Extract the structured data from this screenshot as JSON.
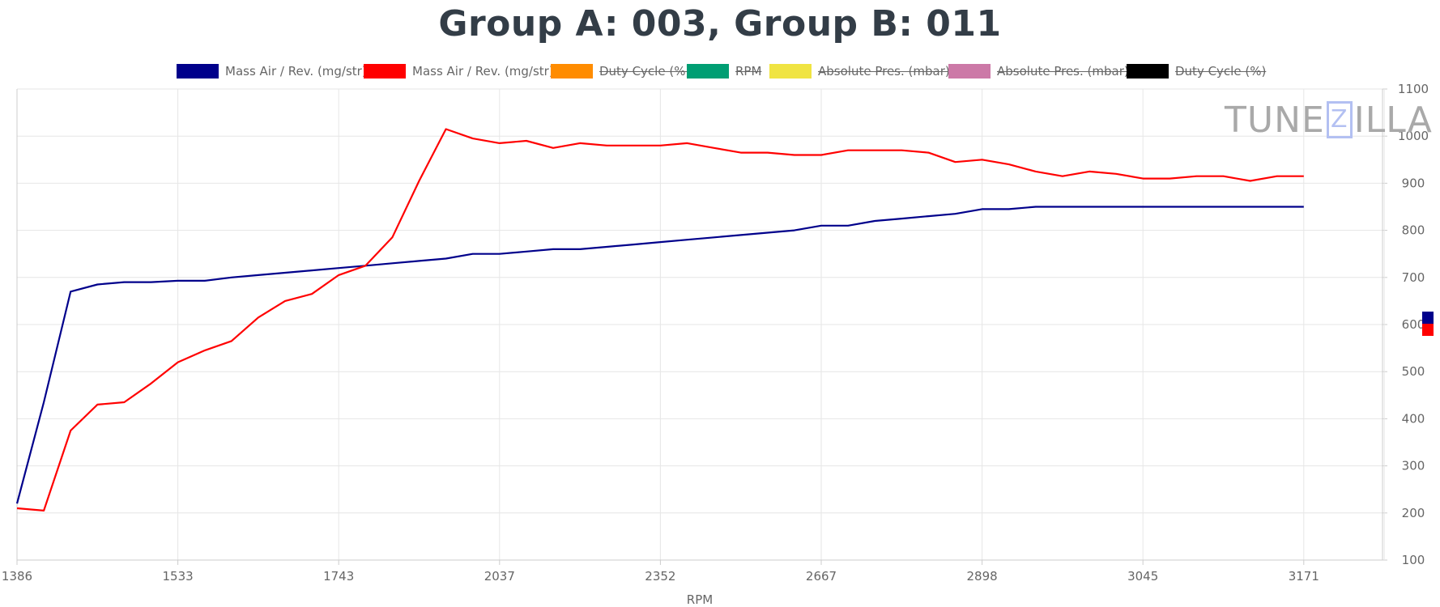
{
  "chart_data": {
    "type": "line",
    "title": "Group A: 003, Group B: 011",
    "xlabel": "RPM",
    "ylabel": "",
    "x_tick_labels": [
      "1386",
      "1533",
      "1743",
      "2037",
      "2352",
      "2667",
      "2898",
      "3045",
      "3171"
    ],
    "x_tick_index": [
      0,
      6,
      12,
      18,
      24,
      30,
      36,
      42,
      48
    ],
    "ylim": [
      100,
      1100
    ],
    "y_ticks": [
      100,
      200,
      300,
      400,
      500,
      600,
      700,
      800,
      900,
      1000,
      1100
    ],
    "grid": true,
    "y_axis_side": "right",
    "legend_position": "top",
    "legend": [
      {
        "label": "Mass Air / Rev. (mg/str)",
        "color": "#00008b",
        "hidden": false
      },
      {
        "label": "Mass Air / Rev. (mg/str)",
        "color": "#ff0000",
        "hidden": false
      },
      {
        "label": "Duty Cycle (%)",
        "color": "#ff8c00",
        "hidden": true
      },
      {
        "label": "RPM",
        "color": "#009e73",
        "hidden": true
      },
      {
        "label": "Absolute Pres. (mbar)",
        "color": "#f0e442",
        "hidden": true
      },
      {
        "label": "Absolute Pres. (mbar)",
        "color": "#cc79a7",
        "hidden": true
      },
      {
        "label": "Duty Cycle (%)",
        "color": "#000000",
        "hidden": true
      }
    ],
    "series": [
      {
        "name": "Mass Air / Rev. (mg/str)",
        "color": "#00008b",
        "values": [
          220,
          435,
          670,
          685,
          690,
          690,
          693,
          693,
          700,
          705,
          710,
          715,
          720,
          725,
          730,
          735,
          740,
          750,
          750,
          755,
          760,
          760,
          765,
          770,
          775,
          780,
          785,
          790,
          795,
          800,
          810,
          810,
          820,
          825,
          830,
          835,
          845,
          845,
          850,
          850,
          850,
          850,
          850,
          850,
          850,
          850,
          850,
          850,
          850
        ]
      },
      {
        "name": "Mass Air / Rev. (mg/str)",
        "color": "#ff0000",
        "values": [
          210,
          205,
          375,
          430,
          435,
          475,
          520,
          545,
          565,
          615,
          650,
          665,
          705,
          725,
          785,
          905,
          1015,
          995,
          985,
          990,
          975,
          985,
          980,
          980,
          980,
          985,
          975,
          965,
          965,
          960,
          960,
          970,
          970,
          970,
          965,
          945,
          950,
          940,
          925,
          915,
          925,
          920,
          910,
          910,
          915,
          915,
          905,
          915,
          915
        ]
      }
    ]
  },
  "watermark": {
    "text_left": "TUNE",
    "text_box": "Z",
    "text_right": "ILLA"
  },
  "side_markers": [
    {
      "color": "#00008b"
    },
    {
      "color": "#ff0000"
    }
  ]
}
